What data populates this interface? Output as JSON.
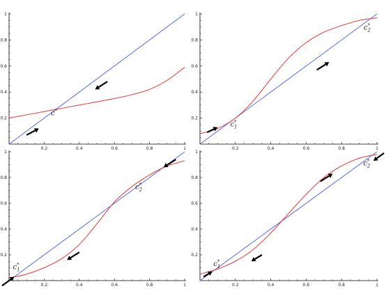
{
  "chart_data": [
    {
      "type": "line",
      "title": "",
      "xlabel": "",
      "ylabel": "",
      "xlim": [
        0,
        1
      ],
      "ylim": [
        0,
        1
      ],
      "x_ticks": [
        "0.2",
        "0.4",
        "0.6",
        "0.8",
        "1"
      ],
      "y_ticks": [
        "0.2",
        "0.4",
        "0.6",
        "0.8",
        "1"
      ],
      "grid": false,
      "series": [
        {
          "color": "#5566ee",
          "x": [
            0,
            1
          ],
          "y": [
            0,
            1
          ]
        },
        {
          "color": "#ee3333",
          "x": [
            0,
            0.1,
            0.2,
            0.3,
            0.4,
            0.5,
            0.6,
            0.7,
            0.8,
            0.9,
            1
          ],
          "y": [
            0.2,
            0.225,
            0.25,
            0.275,
            0.3,
            0.325,
            0.35,
            0.38,
            0.42,
            0.49,
            0.59
          ]
        }
      ],
      "fixed_points": [
        {
          "base": "c",
          "sup": "*",
          "sub": "",
          "x": 0.27,
          "y": 0.27
        }
      ],
      "arrows": [
        {
          "from": [
            0.1,
            0.07
          ],
          "to": [
            0.17,
            0.12
          ],
          "direction": "up-right"
        },
        {
          "from": [
            0.56,
            0.48
          ],
          "to": [
            0.49,
            0.42
          ],
          "direction": "down-left"
        }
      ]
    },
    {
      "type": "line",
      "title": "",
      "xlabel": "",
      "ylabel": "",
      "xlim": [
        0,
        1
      ],
      "ylim": [
        0,
        1
      ],
      "x_ticks": [
        "0.2",
        "0.4",
        "0.6",
        "0.8",
        "1"
      ],
      "y_ticks": [
        "0.2",
        "0.4",
        "0.6",
        "0.8",
        "1"
      ],
      "grid": false,
      "series": [
        {
          "color": "#5566ee",
          "x": [
            0,
            1
          ],
          "y": [
            0,
            1
          ]
        },
        {
          "color": "#ee3333",
          "x": [
            0,
            0.1,
            0.2,
            0.3,
            0.4,
            0.5,
            0.6,
            0.7,
            0.8,
            0.9,
            1
          ],
          "y": [
            0.08,
            0.12,
            0.2,
            0.33,
            0.5,
            0.66,
            0.78,
            0.86,
            0.91,
            0.95,
            0.97
          ]
        }
      ],
      "fixed_points": [
        {
          "base": "c",
          "sup": "*",
          "sub": "1",
          "x": 0.21,
          "y": 0.21
        },
        {
          "base": "c",
          "sup": "*",
          "sub": "2",
          "x": 0.96,
          "y": 0.96
        }
      ],
      "arrows": [
        {
          "from": [
            0.04,
            0.09
          ],
          "to": [
            0.1,
            0.13
          ],
          "direction": "up-right"
        },
        {
          "from": [
            0.66,
            0.57
          ],
          "to": [
            0.73,
            0.63
          ],
          "direction": "up-right"
        }
      ]
    },
    {
      "type": "line",
      "title": "",
      "xlabel": "",
      "ylabel": "",
      "xlim": [
        0,
        1
      ],
      "ylim": [
        0,
        1
      ],
      "x_ticks": [
        "0.2",
        "0.4",
        "0.6",
        "0.8",
        "1"
      ],
      "y_ticks": [
        "0.2",
        "0.4",
        "0.6",
        "0.8",
        "1"
      ],
      "grid": false,
      "series": [
        {
          "color": "#5566ee",
          "x": [
            0,
            1
          ],
          "y": [
            0,
            1
          ]
        },
        {
          "color": "#ee3333",
          "x": [
            0,
            0.1,
            0.2,
            0.3,
            0.4,
            0.5,
            0.6,
            0.7,
            0.8,
            0.9,
            1
          ],
          "y": [
            0.02,
            0.05,
            0.1,
            0.17,
            0.28,
            0.44,
            0.61,
            0.73,
            0.82,
            0.89,
            0.93
          ]
        }
      ],
      "fixed_points": [
        {
          "base": "c",
          "sup": "*",
          "sub": "1",
          "x": 0.03,
          "y": 0.03
        },
        {
          "base": "c",
          "sup": "*",
          "sub": "2",
          "x": 0.77,
          "y": 0.77
        }
      ],
      "arrows": [
        {
          "from": [
            -0.04,
            -0.04
          ],
          "to": [
            0.03,
            0.03
          ],
          "direction": "up-right"
        },
        {
          "from": [
            0.4,
            0.22
          ],
          "to": [
            0.33,
            0.16
          ],
          "direction": "down-left"
        },
        {
          "from": [
            0.95,
            0.94
          ],
          "to": [
            0.88,
            0.88
          ],
          "direction": "down-left"
        }
      ]
    },
    {
      "type": "line",
      "title": "",
      "xlabel": "",
      "ylabel": "",
      "xlim": [
        0,
        1
      ],
      "ylim": [
        0,
        1
      ],
      "x_ticks": [
        "0.2",
        "0.4",
        "0.6",
        "0.8",
        "1"
      ],
      "y_ticks": [
        "0.2",
        "0.4",
        "0.6",
        "0.8",
        "1"
      ],
      "grid": false,
      "series": [
        {
          "color": "#5566ee",
          "x": [
            0,
            1
          ],
          "y": [
            0,
            1
          ]
        },
        {
          "color": "#ee3333",
          "x": [
            0,
            0.1,
            0.2,
            0.3,
            0.4,
            0.5,
            0.6,
            0.7,
            0.8,
            0.9,
            1
          ],
          "y": [
            0.05,
            0.09,
            0.15,
            0.24,
            0.37,
            0.52,
            0.67,
            0.8,
            0.89,
            0.95,
            0.98
          ]
        }
      ],
      "fixed_points": [
        {
          "base": "c",
          "sup": "*",
          "sub": "1",
          "x": 0.06,
          "y": 0.06
        },
        {
          "base": "c",
          "sup": "*",
          "sub": "2",
          "x": 0.97,
          "y": 0.97
        }
      ],
      "arrows": [
        {
          "from": [
            0.02,
            0.03
          ],
          "to": [
            0.07,
            0.07
          ],
          "direction": "up-right"
        },
        {
          "from": [
            0.35,
            0.2
          ],
          "to": [
            0.29,
            0.15
          ],
          "direction": "down-left"
        },
        {
          "from": [
            0.68,
            0.77
          ],
          "to": [
            0.75,
            0.83
          ],
          "direction": "up-right"
        },
        {
          "from": [
            1.04,
            0.99
          ],
          "to": [
            0.98,
            0.93
          ],
          "direction": "down-left"
        }
      ]
    }
  ]
}
